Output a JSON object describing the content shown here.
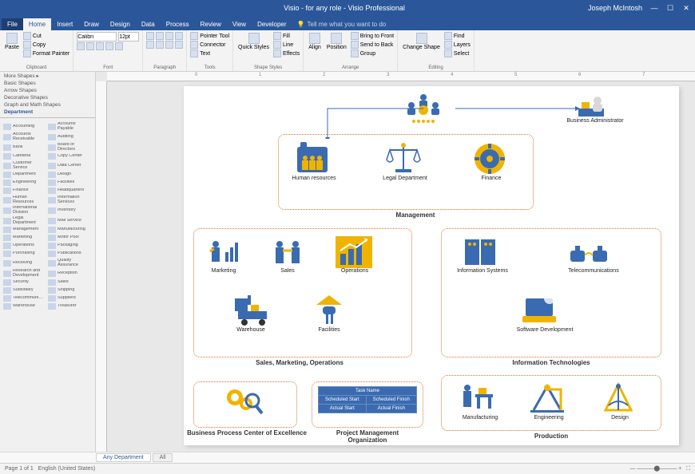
{
  "app": {
    "title": "Visio - for any role - Visio Professional",
    "user": "Joseph McIntosh"
  },
  "tabs": [
    "File",
    "Home",
    "Insert",
    "Draw",
    "Design",
    "Data",
    "Process",
    "Review",
    "View",
    "Developer"
  ],
  "active_tab": "Home",
  "tell_me": "Tell me what you want to do",
  "ribbon": {
    "clipboard": {
      "label": "Clipboard",
      "paste": "Paste",
      "cut": "Cut",
      "copy": "Copy",
      "fmt": "Format Painter"
    },
    "font": {
      "label": "Font",
      "family": "Calibri",
      "size": "12pt"
    },
    "paragraph": {
      "label": "Paragraph"
    },
    "tools": {
      "label": "Tools",
      "pointer": "Pointer Tool",
      "connector": "Connector",
      "text": "Text"
    },
    "shape_styles": {
      "label": "Shape Styles",
      "quick": "Quick Styles",
      "fill": "Fill",
      "line": "Line",
      "effects": "Effects"
    },
    "arrange": {
      "label": "Arrange",
      "align": "Align",
      "position": "Position",
      "front": "Bring to Front",
      "back": "Send to Back",
      "group": "Group"
    },
    "editing": {
      "label": "Editing",
      "change": "Change Shape",
      "find": "Find",
      "layers": "Layers",
      "select": "Select"
    }
  },
  "shapes_panel": {
    "categories": [
      "More Shapes",
      "Basic Shapes",
      "Arrow Shapes",
      "Decorative Shapes",
      "Graph and Math Shapes",
      "Department"
    ],
    "active": "Department",
    "items_left": [
      "Accounting",
      "Accounts Receivable",
      "Bank",
      "Cafeteria",
      "Customer Service",
      "Department",
      "Engineering",
      "Finance",
      "Human Resources",
      "International Division",
      "Legal Department",
      "Management",
      "Marketing",
      "Operations",
      "Purchasing",
      "Receiving",
      "Research and Development",
      "Security",
      "Subsidiary",
      "Telecommuni…",
      "Warehouse"
    ],
    "items_right": [
      "Accounts Payable",
      "Auditing",
      "Board of Directors",
      "Copy Center",
      "Data Center",
      "Design",
      "Facilities",
      "Headquarters",
      "Information Services",
      "Inventory",
      "Mail Service",
      "Manufacturing",
      "Motor Pool",
      "Packaging",
      "Publications",
      "Quality Assurance",
      "Reception",
      "Sales",
      "Shipping",
      "Suppliers",
      "Treasurer"
    ]
  },
  "diagram": {
    "colors": {
      "blue": "#3a6bb0",
      "gold": "#f0b400",
      "border": "#e07030"
    },
    "top": {
      "admin": "Business Administrator"
    },
    "management": {
      "title": "Management",
      "items": [
        "Human resources",
        "Legal Department",
        "Finance"
      ]
    },
    "smo": {
      "title": "Sales, Marketing, Operations",
      "row1": [
        "Marketing",
        "Sales",
        "Operations"
      ],
      "row2": [
        "Warehouse",
        "Facilities"
      ]
    },
    "it": {
      "title": "Information Technologies",
      "row1": [
        "Information Systems",
        "Telecommunications"
      ],
      "row2": [
        "Software Development"
      ]
    },
    "bpce": {
      "title": "Business Process Center of Excellence"
    },
    "pmo": {
      "title": "Project Management Organization",
      "cells": [
        [
          "Task Name"
        ],
        [
          "Scheduled Start",
          "Scheduled Finish"
        ],
        [
          "Actual Start",
          "Actual Finish"
        ]
      ]
    },
    "production": {
      "title": "Production",
      "items": [
        "Manufacturing",
        "Engineering",
        "Design"
      ]
    }
  },
  "page_tabs": {
    "active": "Any Department",
    "all": "All"
  },
  "status": {
    "page": "Page 1 of 1",
    "lang": "English (United States)"
  }
}
